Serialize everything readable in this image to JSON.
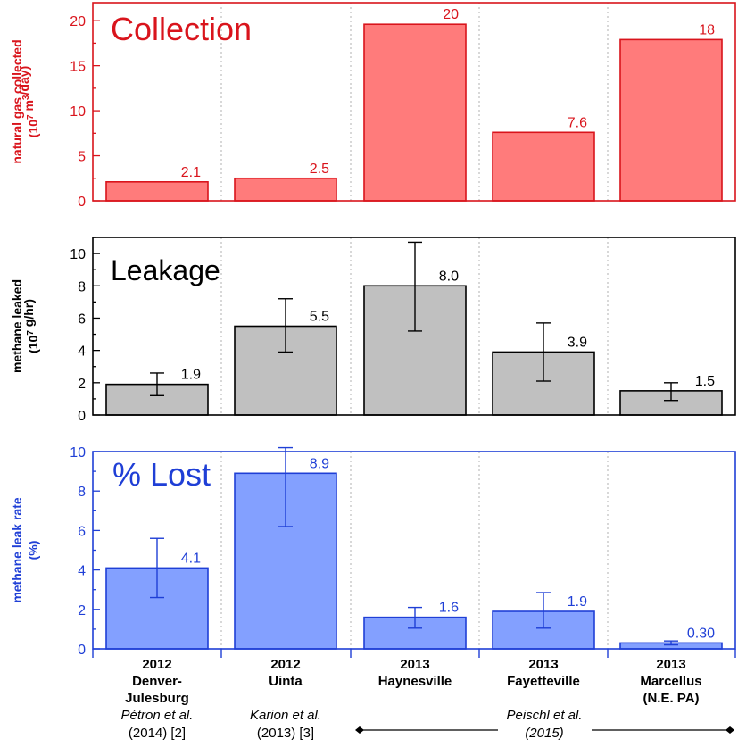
{
  "chart_data": [
    {
      "type": "bar",
      "title": "Collection",
      "ylabel_line1": "natural gas collected",
      "ylabel_line2": "(10",
      "ylabel_sup1": "7",
      "ylabel_line2b": " m",
      "ylabel_sup2": "3",
      "ylabel_line2c": "/day)",
      "ylim": [
        0,
        22
      ],
      "yticks": [
        0,
        5,
        10,
        15,
        20
      ],
      "color": "#d9141c",
      "fill": "#ff7b7b",
      "frame_color": "#d9141c",
      "categories": [
        "Denver-Julesburg",
        "Uinta",
        "Haynesville",
        "Fayetteville",
        "Marcellus"
      ],
      "values": [
        2.1,
        2.5,
        19.6,
        7.6,
        17.9
      ],
      "value_labels": [
        "2.1",
        "2.5",
        "20",
        "7.6",
        "18"
      ],
      "errors": null
    },
    {
      "type": "bar",
      "title": "Leakage",
      "ylabel_line1": "methane leaked",
      "ylabel_line2": "(10",
      "ylabel_sup1": "7",
      "ylabel_line2b": " g/hr)",
      "ylim": [
        0,
        11
      ],
      "yticks": [
        0,
        2,
        4,
        6,
        8,
        10
      ],
      "color": "#000000",
      "fill": "#c0c0c0",
      "frame_color": "#000000",
      "categories": [
        "Denver-Julesburg",
        "Uinta",
        "Haynesville",
        "Fayetteville",
        "Marcellus"
      ],
      "values": [
        1.9,
        5.5,
        8.0,
        3.9,
        1.5
      ],
      "value_labels": [
        "1.9",
        "5.5",
        "8.0",
        "3.9",
        "1.5"
      ],
      "errors": [
        [
          1.2,
          2.6
        ],
        [
          3.9,
          7.2
        ],
        [
          5.2,
          10.7
        ],
        [
          2.1,
          5.7
        ],
        [
          0.9,
          2.0
        ]
      ]
    },
    {
      "type": "bar",
      "title": "% Lost",
      "ylabel_line1": "methane leak rate",
      "ylabel_line2": "(%)",
      "ylim": [
        0,
        10
      ],
      "yticks": [
        0,
        2,
        4,
        6,
        8,
        10
      ],
      "color": "#1f3fd6",
      "fill": "#83a0ff",
      "frame_color": "#1f3fd6",
      "categories": [
        "Denver-Julesburg",
        "Uinta",
        "Haynesville",
        "Fayetteville",
        "Marcellus"
      ],
      "values": [
        4.1,
        8.9,
        1.6,
        1.9,
        0.3
      ],
      "value_labels": [
        "4.1",
        "8.9",
        "1.6",
        "1.9",
        "0.30"
      ],
      "errors": [
        [
          2.6,
          5.6
        ],
        [
          6.2,
          10.2
        ],
        [
          1.05,
          2.1
        ],
        [
          1.05,
          2.85
        ],
        [
          0.2,
          0.4
        ]
      ]
    }
  ],
  "x_categories": [
    {
      "year": "2012",
      "name1": "Denver-",
      "name2": "Julesburg",
      "ref_author": "Pétron et al.",
      "ref_year": "(2014) [2]"
    },
    {
      "year": "2012",
      "name1": "Uinta",
      "name2": "",
      "ref_author": "Karion et al.",
      "ref_year": "(2013) [3]"
    },
    {
      "year": "2013",
      "name1": "Haynesville",
      "name2": "",
      "ref_author": "",
      "ref_year": ""
    },
    {
      "year": "2013",
      "name1": "Fayetteville",
      "name2": "",
      "ref_author": "",
      "ref_year": ""
    },
    {
      "year": "2013",
      "name1": "Marcellus",
      "name2": "(N.E. PA)",
      "ref_author": "",
      "ref_year": ""
    }
  ],
  "shared_ref": {
    "author": "Peischl et al.",
    "year": "(2015)"
  }
}
